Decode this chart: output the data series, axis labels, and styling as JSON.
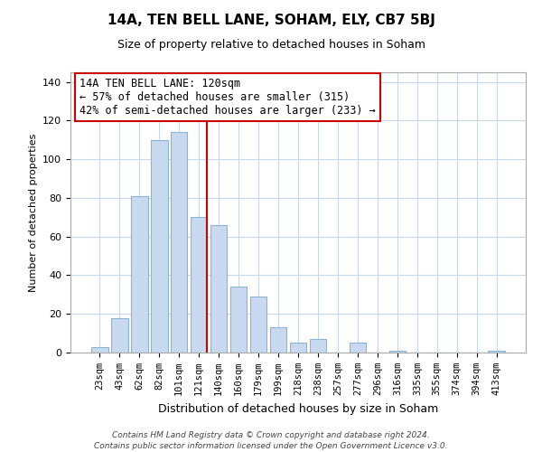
{
  "title": "14A, TEN BELL LANE, SOHAM, ELY, CB7 5BJ",
  "subtitle": "Size of property relative to detached houses in Soham",
  "xlabel": "Distribution of detached houses by size in Soham",
  "ylabel": "Number of detached properties",
  "categories": [
    "23sqm",
    "43sqm",
    "62sqm",
    "82sqm",
    "101sqm",
    "121sqm",
    "140sqm",
    "160sqm",
    "179sqm",
    "199sqm",
    "218sqm",
    "238sqm",
    "257sqm",
    "277sqm",
    "296sqm",
    "316sqm",
    "335sqm",
    "355sqm",
    "374sqm",
    "394sqm",
    "413sqm"
  ],
  "values": [
    3,
    18,
    81,
    110,
    114,
    70,
    66,
    34,
    29,
    13,
    5,
    7,
    0,
    5,
    0,
    1,
    0,
    0,
    0,
    0,
    1
  ],
  "bar_color": "#c8daf0",
  "bar_edge_color": "#8ab4d4",
  "highlight_index": 5,
  "highlight_line_color": "#cc0000",
  "annotation_title": "14A TEN BELL LANE: 120sqm",
  "annotation_line1": "← 57% of detached houses are smaller (315)",
  "annotation_line2": "42% of semi-detached houses are larger (233) →",
  "annotation_box_color": "#ffffff",
  "annotation_box_edge": "#cc0000",
  "ylim": [
    0,
    145
  ],
  "yticks": [
    0,
    20,
    40,
    60,
    80,
    100,
    120,
    140
  ],
  "footer_line1": "Contains HM Land Registry data © Crown copyright and database right 2024.",
  "footer_line2": "Contains public sector information licensed under the Open Government Licence v3.0.",
  "background_color": "#ffffff",
  "grid_color": "#c8d8e8",
  "title_fontsize": 11,
  "subtitle_fontsize": 9,
  "ylabel_fontsize": 8,
  "xlabel_fontsize": 9,
  "tick_fontsize": 7.5,
  "annotation_fontsize": 8.5,
  "footer_fontsize": 6.5
}
